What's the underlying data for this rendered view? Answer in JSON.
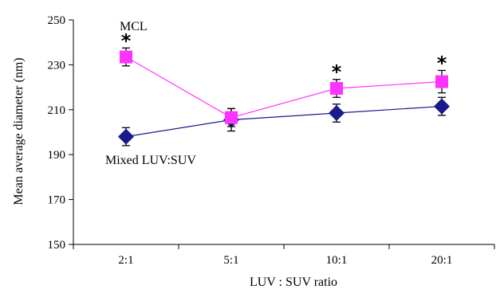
{
  "chart_data": {
    "type": "line",
    "title": "",
    "xlabel": "LUV : SUV ratio",
    "ylabel": "Mean average diameter (nm)",
    "categories": [
      "2:1",
      "5:1",
      "10:1",
      "20:1"
    ],
    "ylim": [
      150,
      250
    ],
    "yticks": [
      150,
      170,
      190,
      210,
      230,
      250
    ],
    "grid": false,
    "legend": "none",
    "series": [
      {
        "name": "MCL",
        "marker": "square",
        "color": "#ff33ff",
        "values": [
          233.5,
          206.5,
          219.5,
          222.5
        ],
        "errors": [
          4,
          4,
          4,
          5
        ],
        "significance": [
          "*",
          "",
          "*",
          "*"
        ]
      },
      {
        "name": "Mixed LUV:SUV",
        "marker": "diamond",
        "color": "#1a1a8c",
        "values": [
          198,
          205.5,
          208.5,
          211.5
        ],
        "errors": [
          4,
          5,
          4,
          4
        ],
        "significance": [
          "",
          "",
          "",
          ""
        ]
      }
    ]
  }
}
